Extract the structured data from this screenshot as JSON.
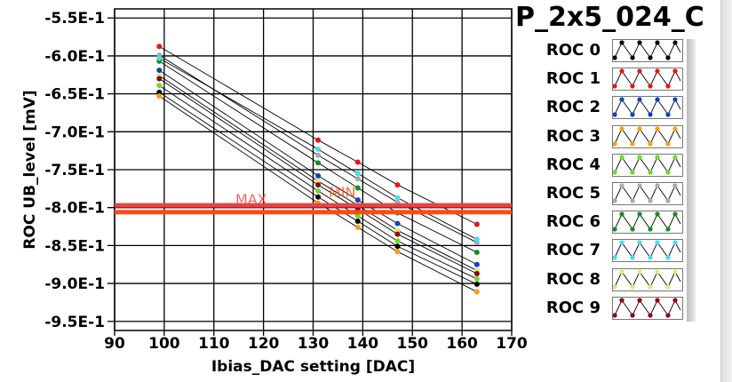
{
  "title": "P_2x5_024_C",
  "chart_data": {
    "type": "line",
    "xlabel": "Ibias_DAC setting [DAC]",
    "ylabel": "ROC UB_level [mV]",
    "xlim": [
      90,
      170
    ],
    "ylim": [
      -0.962,
      -0.538
    ],
    "xticks": [
      90,
      100,
      110,
      120,
      130,
      140,
      150,
      160,
      170
    ],
    "xtick_labels": [
      "90",
      "100",
      "110",
      "120",
      "130",
      "140",
      "150",
      "160",
      "170"
    ],
    "yticks": [
      -0.55,
      -0.6,
      -0.65,
      -0.7,
      -0.75,
      -0.8,
      -0.85,
      -0.9,
      -0.95
    ],
    "ytick_labels": [
      "-5.5E-1",
      "-6.0E-1",
      "-6.5E-1",
      "-7.0E-1",
      "-7.5E-1",
      "-8.0E-1",
      "-8.5E-1",
      "-9.0E-1",
      "-9.5E-1"
    ],
    "grid": true,
    "legend_position": "right",
    "thresholds": [
      {
        "label": "MAX",
        "value": -0.797,
        "color": "#f04040"
      },
      {
        "label": "MIN",
        "value": -0.806,
        "color": "#ff4a10"
      }
    ],
    "x": [
      99,
      131,
      139,
      147,
      163
    ],
    "series": [
      {
        "name": "ROC 0",
        "color": "#000000",
        "values": [
          -0.648,
          -0.786,
          -0.818,
          -0.851,
          -0.901
        ]
      },
      {
        "name": "ROC 1",
        "color": "#ee1111",
        "values": [
          -0.5875,
          -0.711,
          -0.74,
          -0.77,
          -0.822
        ]
      },
      {
        "name": "ROC 2",
        "color": "#1040c0",
        "values": [
          -0.619,
          -0.758,
          -0.79,
          -0.821,
          -0.875
        ]
      },
      {
        "name": "ROC 3",
        "color": "#ff9a10",
        "values": [
          -0.653,
          -0.794,
          -0.826,
          -0.858,
          -0.911
        ]
      },
      {
        "name": "ROC 4",
        "color": "#66e020",
        "values": [
          -0.639,
          -0.778,
          -0.811,
          -0.844,
          -0.894
        ]
      },
      {
        "name": "ROC 5",
        "color": "#aaaaaa",
        "values": [
          -0.599,
          -0.731,
          -0.762,
          -0.793,
          -0.846
        ]
      },
      {
        "name": "ROC 6",
        "color": "#109020",
        "values": [
          -0.607,
          -0.741,
          -0.774,
          -0.807,
          -0.859
        ]
      },
      {
        "name": "ROC 7",
        "color": "#40e0f0",
        "values": [
          -0.603,
          -0.723,
          -0.755,
          -0.787,
          -0.842
        ]
      },
      {
        "name": "ROC 8",
        "color": "#d8ee70",
        "values": [
          -0.626,
          -0.765,
          -0.797,
          -0.83,
          -0.883
        ]
      },
      {
        "name": "ROC 9",
        "color": "#900010",
        "values": [
          -0.63,
          -0.77,
          -0.802,
          -0.835,
          -0.887
        ]
      }
    ]
  }
}
